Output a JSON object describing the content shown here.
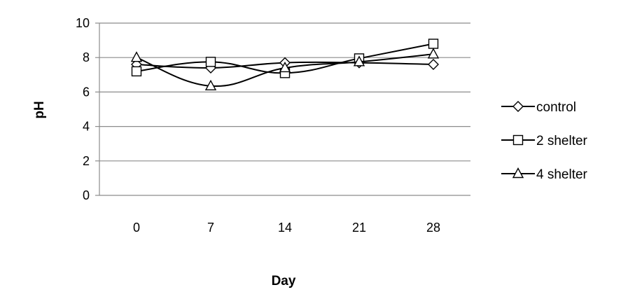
{
  "chart_data": {
    "type": "line",
    "title": "",
    "xlabel": "Day",
    "ylabel": "pH",
    "categories": [
      "0",
      "7",
      "14",
      "21",
      "28"
    ],
    "ylim": [
      0,
      10
    ],
    "yticks": [
      "0",
      "2",
      "4",
      "6",
      "8",
      "10"
    ],
    "grid": "horizontal",
    "smooth": true,
    "legend_position": "right",
    "series": [
      {
        "name": "control",
        "marker": "diamond",
        "color": "#000000",
        "values": [
          7.6,
          7.4,
          7.7,
          7.7,
          7.6
        ]
      },
      {
        "name": "2 shelter",
        "marker": "square",
        "color": "#000000",
        "values": [
          7.2,
          7.75,
          7.1,
          7.95,
          8.8
        ]
      },
      {
        "name": "4 shelter",
        "marker": "triangle",
        "color": "#000000",
        "values": [
          8.0,
          6.35,
          7.4,
          7.75,
          8.2
        ]
      }
    ]
  }
}
